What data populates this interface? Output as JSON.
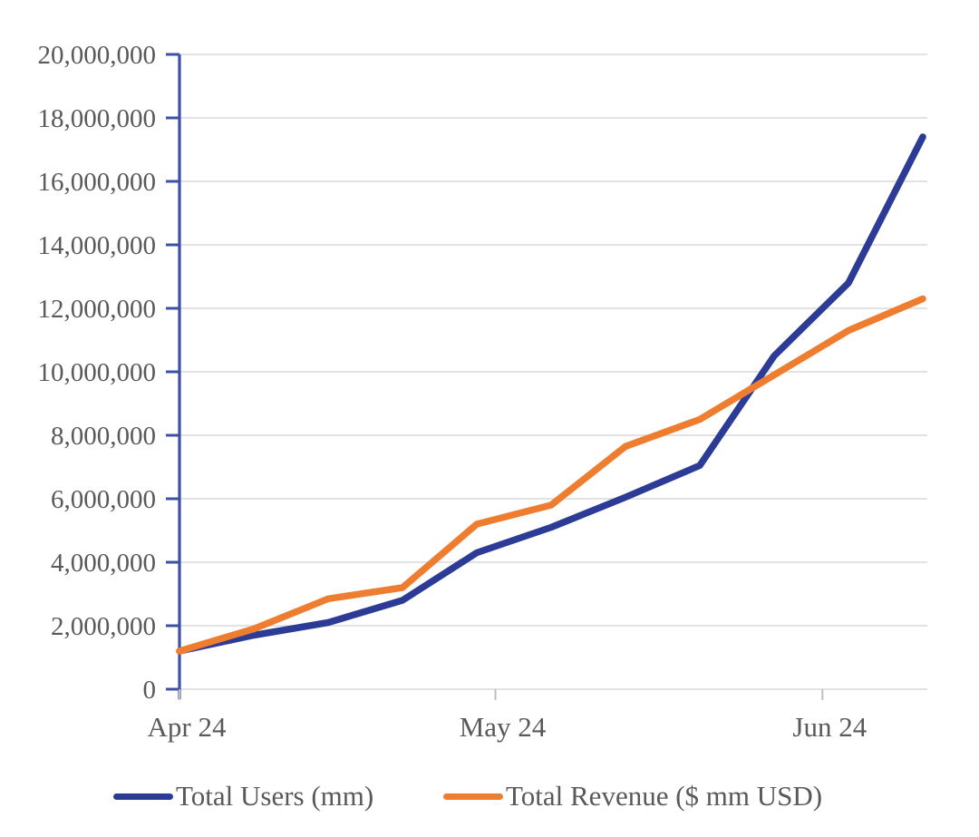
{
  "chart_data": {
    "type": "line",
    "title": "",
    "xlabel": "",
    "ylabel": "",
    "point_index": [
      1,
      2,
      3,
      4,
      5,
      6,
      7,
      8,
      9,
      10,
      11
    ],
    "series": [
      {
        "name": "Total Users (mm)",
        "color": "#2B3B96",
        "values": [
          1200000,
          1700000,
          2100000,
          2800000,
          4300000,
          5100000,
          6050000,
          7050000,
          10500000,
          12800000,
          17400000
        ]
      },
      {
        "name": "Total Revenue ($ mm USD)",
        "color": "#EE7D2F",
        "values": [
          1200000,
          1900000,
          2850000,
          3200000,
          5200000,
          5800000,
          7650000,
          8500000,
          9900000,
          11300000,
          12300000
        ]
      }
    ],
    "x_axis": {
      "tick_labels": [
        "Apr 24",
        "May 24",
        "Jun 24"
      ],
      "tick_point_index": [
        0,
        4.25,
        8.65
      ]
    },
    "y_axis": {
      "min": 0,
      "max": 20000000,
      "tick_step": 2000000,
      "tick_labels": [
        "0",
        "2,000,000",
        "4,000,000",
        "6,000,000",
        "8,000,000",
        "10,000,000",
        "12,000,000",
        "14,000,000",
        "16,000,000",
        "18,000,000",
        "20,000,000"
      ]
    },
    "grid": "horizontal",
    "legend_position": "bottom"
  },
  "legend": {
    "items": [
      {
        "label": "Total Users (mm)",
        "color": "#2B3B96"
      },
      {
        "label": "Total Revenue ($ mm USD)",
        "color": "#EE7D2F"
      }
    ]
  },
  "style_colors": {
    "gridline": "#D9D9D9",
    "y_axis_line": "#3D51A3",
    "x_tick": "#BFBFBF",
    "label_text": "#595959"
  }
}
